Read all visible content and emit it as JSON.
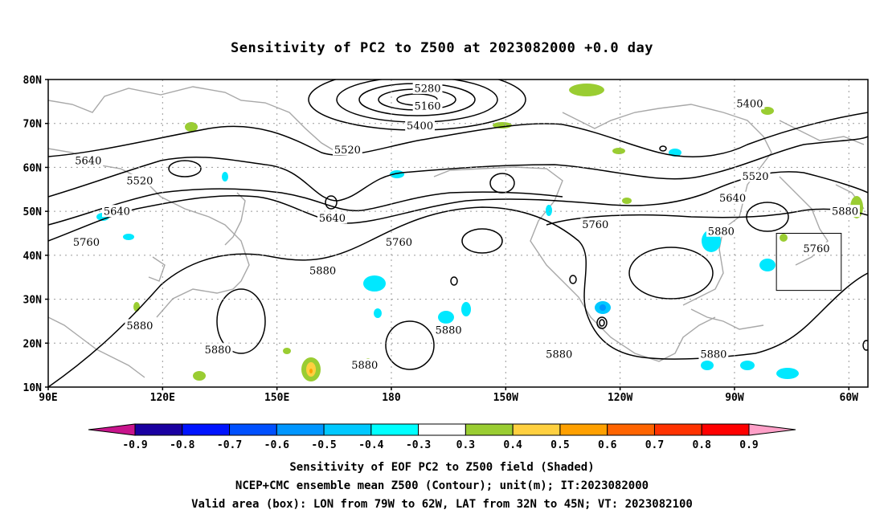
{
  "title": "Sensitivity of PC2 to Z500 at 2023082000 +0.0 day",
  "map": {
    "lat_labels": [
      "80N",
      "70N",
      "60N",
      "50N",
      "40N",
      "30N",
      "20N",
      "10N"
    ],
    "lon_labels": [
      "90E",
      "120E",
      "150E",
      "180",
      "150W",
      "120W",
      "90W",
      "60W"
    ],
    "lat_range": [
      10,
      80
    ],
    "lon_range": [
      90,
      305
    ],
    "valid_box": {
      "lon": [
        281,
        298
      ],
      "lat": [
        32,
        45
      ]
    },
    "contour_labels": [
      {
        "text": "5280",
        "lon": 189.5,
        "lat": 78
      },
      {
        "text": "5160",
        "lon": 189.5,
        "lat": 74
      },
      {
        "text": "5400",
        "lon": 187.5,
        "lat": 69.5
      },
      {
        "text": "5520",
        "lon": 168.5,
        "lat": 64
      },
      {
        "text": "5640",
        "lon": 100.5,
        "lat": 61.5
      },
      {
        "text": "5520",
        "lon": 114,
        "lat": 57
      },
      {
        "text": "5640",
        "lon": 108,
        "lat": 50
      },
      {
        "text": "5760",
        "lon": 100,
        "lat": 43
      },
      {
        "text": "5640",
        "lon": 164.5,
        "lat": 48.5
      },
      {
        "text": "5760",
        "lon": 182,
        "lat": 43
      },
      {
        "text": "5880",
        "lon": 162,
        "lat": 36.5
      },
      {
        "text": "5880",
        "lon": 114,
        "lat": 24
      },
      {
        "text": "5880",
        "lon": 134.5,
        "lat": 18.5
      },
      {
        "text": "5880",
        "lon": 173,
        "lat": 15
      },
      {
        "text": "5880",
        "lon": 195,
        "lat": 23
      },
      {
        "text": "5880",
        "lon": 224,
        "lat": 17.5
      },
      {
        "text": "5760",
        "lon": 233.5,
        "lat": 47
      },
      {
        "text": "5400",
        "lon": 274,
        "lat": 74.5
      },
      {
        "text": "5520",
        "lon": 275.5,
        "lat": 58
      },
      {
        "text": "5640",
        "lon": 269.5,
        "lat": 53
      },
      {
        "text": "5880",
        "lon": 266.5,
        "lat": 45.5
      },
      {
        "text": "5760",
        "lon": 291.5,
        "lat": 41.5
      },
      {
        "text": "5880",
        "lon": 299,
        "lat": 50
      },
      {
        "text": "5880",
        "lon": 264.5,
        "lat": 17.5
      }
    ],
    "colors": {
      "land": "#a8a8a8",
      "grid": "#9a9a9a",
      "contour": "#000000"
    }
  },
  "colorbar": {
    "labels": [
      "-0.9",
      "-0.8",
      "-0.7",
      "-0.6",
      "-0.5",
      "-0.4",
      "-0.3",
      "0.3",
      "0.4",
      "0.5",
      "0.6",
      "0.7",
      "0.8",
      "0.9"
    ],
    "colors": [
      "#1a00a0",
      "#0014ff",
      "#0050ff",
      "#0096ff",
      "#00c8ff",
      "#00ffff",
      "#ffffff",
      "#9acd32",
      "#ffd040",
      "#ffa000",
      "#ff6400",
      "#ff3200",
      "#ff0000"
    ],
    "end_colors": [
      "#c8148c",
      "#ffa0c8"
    ]
  },
  "captions": {
    "line1": "Sensitivity of EOF PC2 to Z500 field (Shaded)",
    "line2": "NCEP+CMC ensemble mean Z500 (Contour); unit(m); IT:2023082000",
    "line3": "Valid area (box): LON from 79W to 62W, LAT from 32N to 45N; VT: 2023082100"
  }
}
